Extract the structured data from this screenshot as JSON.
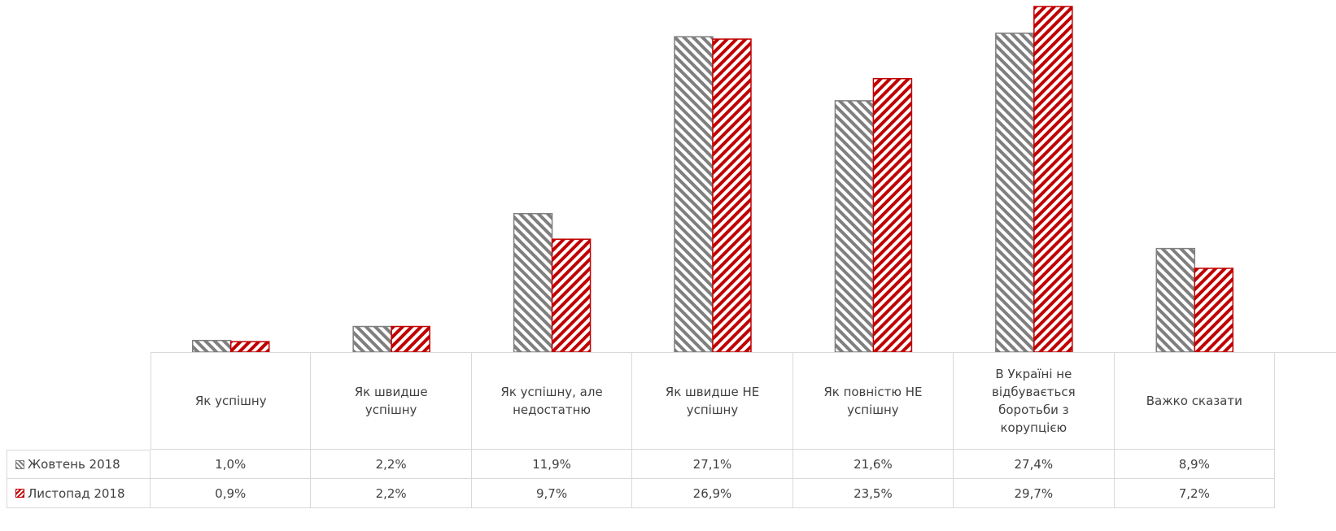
{
  "chart_data": {
    "type": "bar",
    "categories": [
      "Як успішну",
      "Як швидше успішну",
      "Як успішну, але недостатню",
      "Як швидше НЕ успішну",
      "Як повністю НЕ успішну",
      "В Україні не відбувається боротьби з корупцією",
      "Важко сказати"
    ],
    "series": [
      {
        "name": "Жовтень 2018",
        "color": "#7f7f7f",
        "values": [
          1.0,
          2.2,
          11.9,
          27.1,
          21.6,
          27.4,
          8.9
        ],
        "value_labels": [
          "1,0%",
          "2,2%",
          "11,9%",
          "27,1%",
          "21,6%",
          "27,4%",
          "8,9%"
        ]
      },
      {
        "name": "Листопад 2018",
        "color": "#c00000",
        "values": [
          0.9,
          2.2,
          9.7,
          26.9,
          23.5,
          29.7,
          7.2
        ],
        "value_labels": [
          "0,9%",
          "2,2%",
          "9,7%",
          "26,9%",
          "23,5%",
          "29,7%",
          "7,2%"
        ]
      }
    ]
  }
}
